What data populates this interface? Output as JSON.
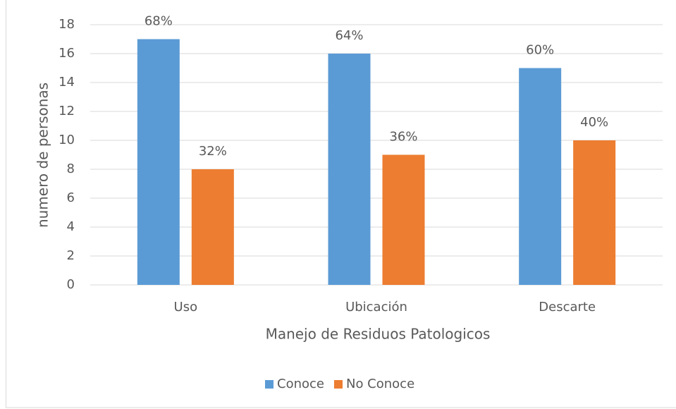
{
  "chart_data": {
    "type": "bar",
    "x_label": "Manejo de Residuos Patologicos",
    "y_label": "numero de personas",
    "categories": [
      "Uso",
      "Ubicación",
      "Descarte"
    ],
    "series": [
      {
        "name": "Conoce",
        "color": "#5b9bd5",
        "values": [
          17,
          16,
          15
        ],
        "value_labels": [
          "68%",
          "64%",
          "60%"
        ]
      },
      {
        "name": "No Conoce",
        "color": "#ed7d31",
        "values": [
          8,
          9,
          10
        ],
        "value_labels": [
          "32%",
          "36%",
          "40%"
        ]
      }
    ],
    "ylim": [
      0,
      18
    ],
    "yticks": [
      0,
      2,
      4,
      6,
      8,
      10,
      12,
      14,
      16,
      18
    ],
    "grid": true,
    "legend": "bottom"
  }
}
